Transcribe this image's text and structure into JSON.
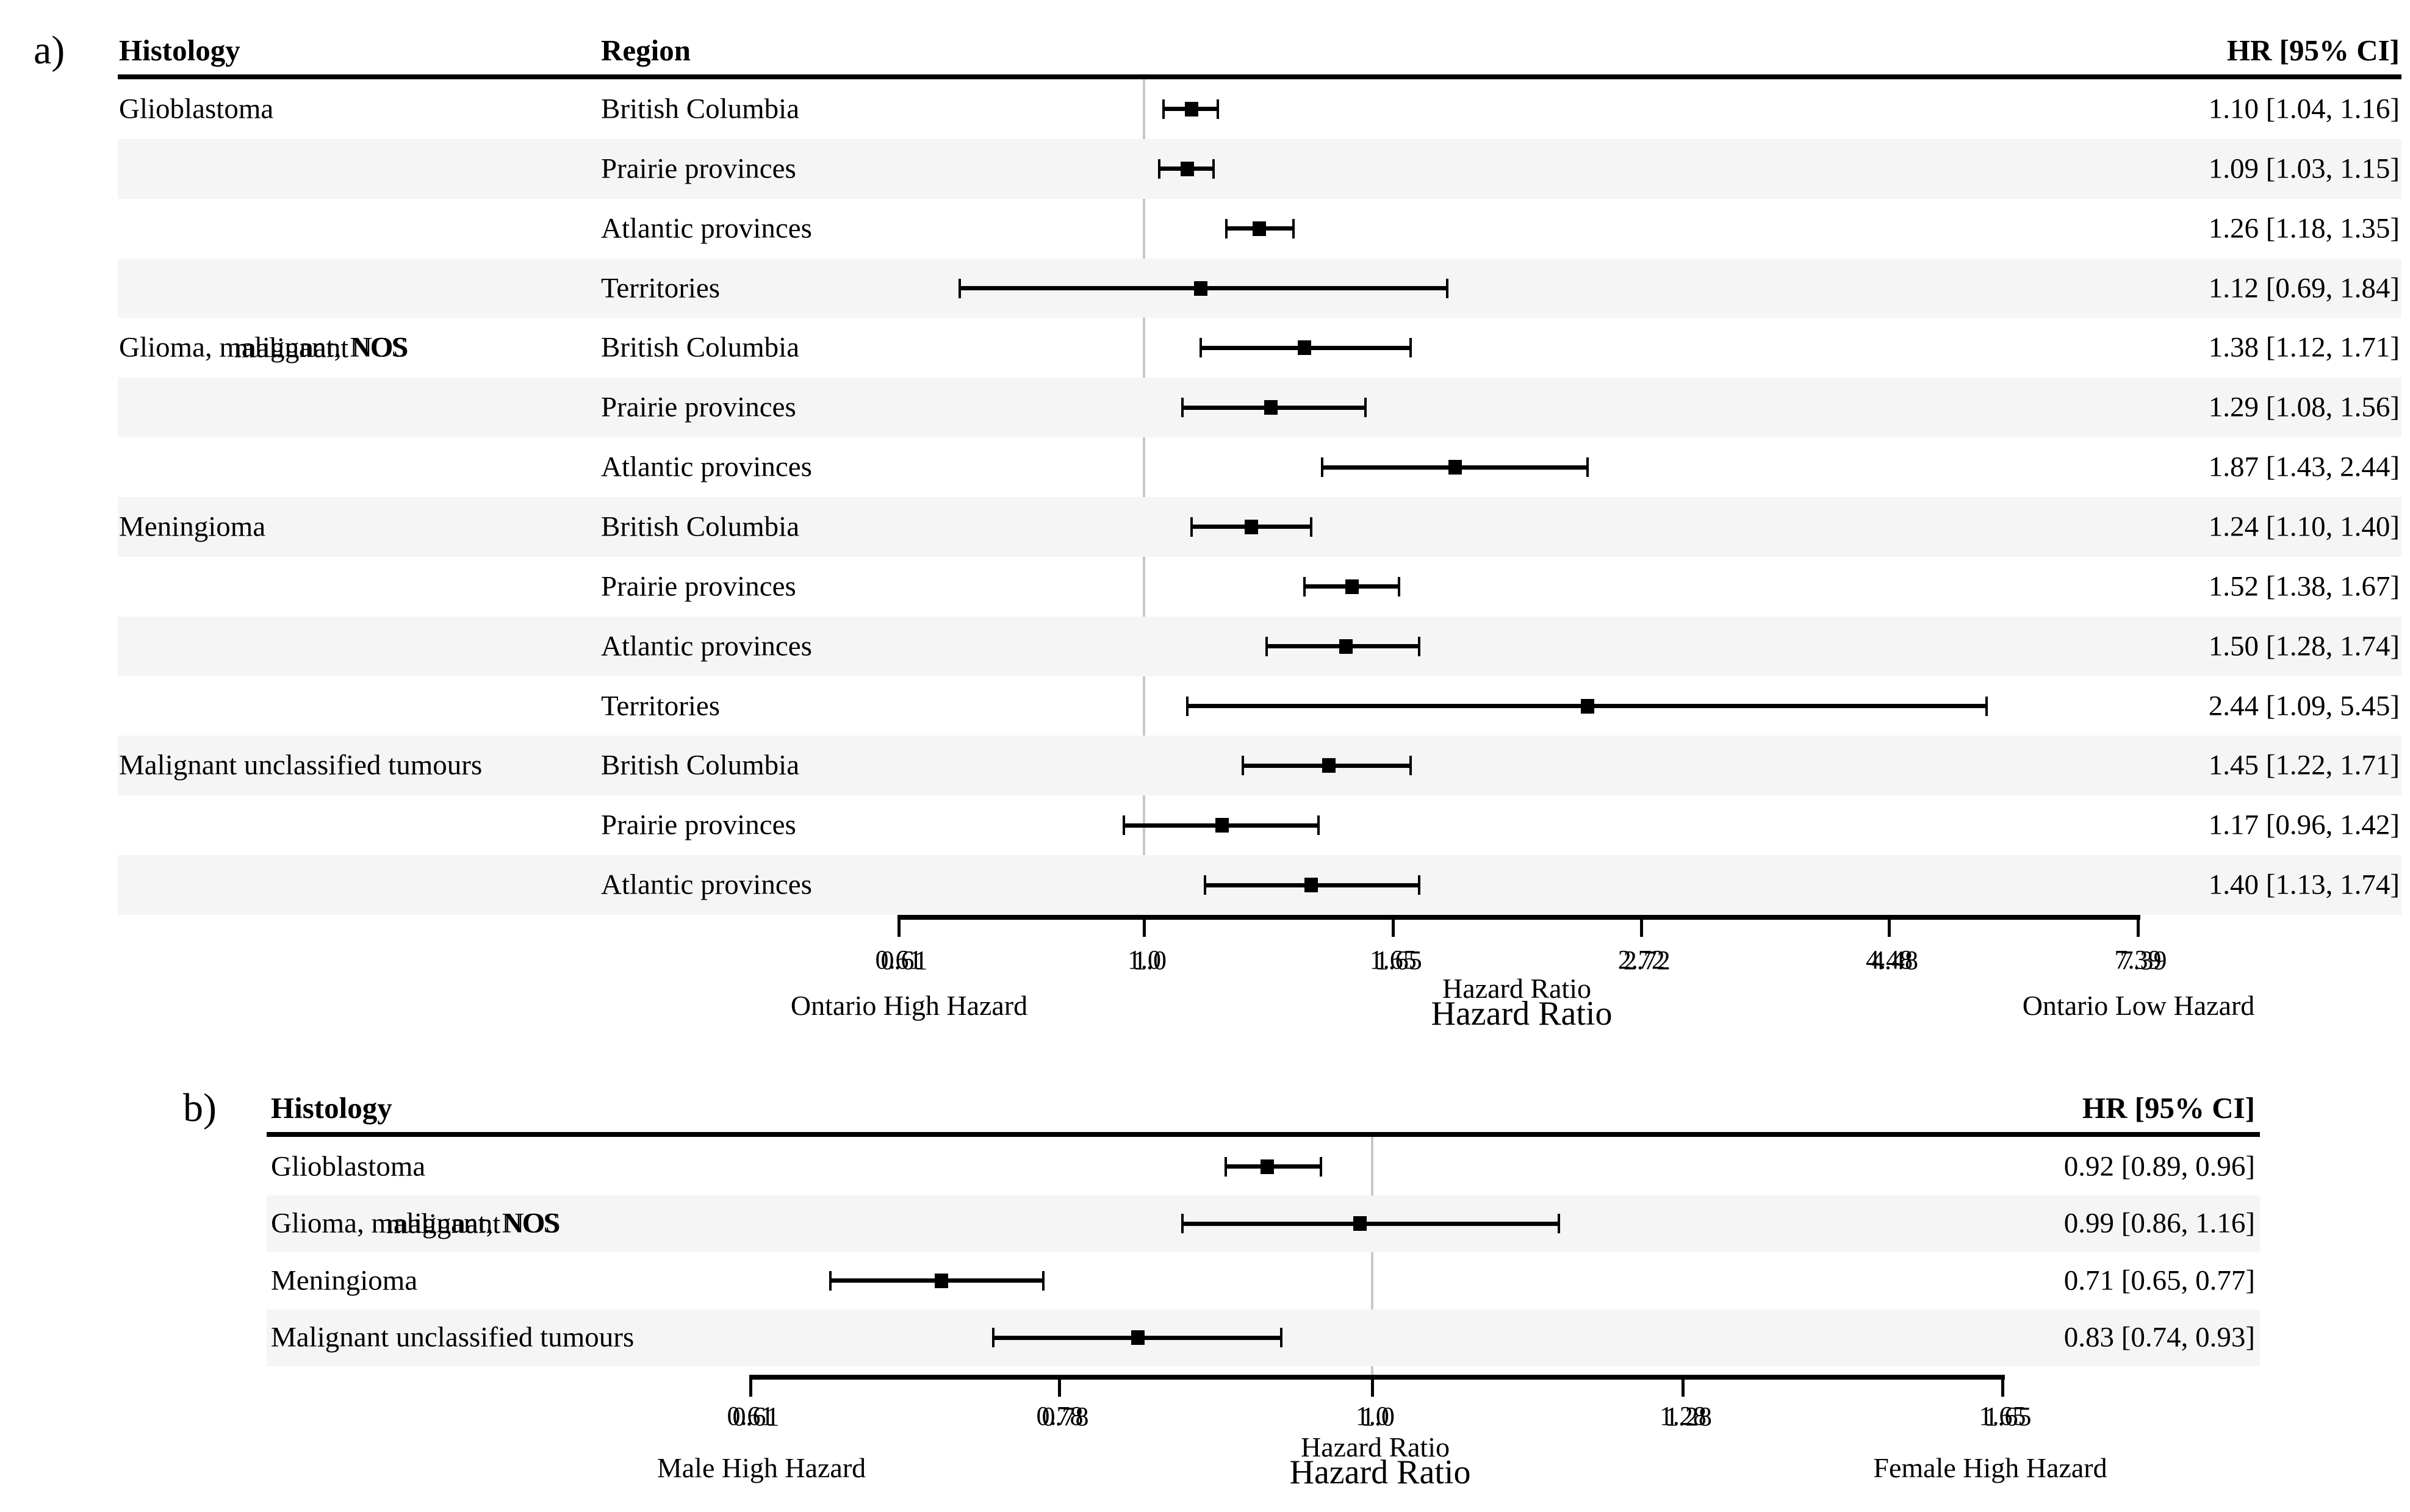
{
  "figure": {
    "background_color": "#ffffff",
    "text_color": "#000000",
    "stripe_color": "#f5f5f5",
    "reference_line_color": "#c8c8c8"
  },
  "panel_a": {
    "panel_label": "a)",
    "headers": {
      "histology": "Histology",
      "region": "Region",
      "hr": "HR [95% CI]"
    },
    "axis": {
      "scale": "log",
      "min": 0.61,
      "max": 7.39,
      "reference": 1.0,
      "ticks": [
        {
          "v": 0.61,
          "label": "0.61"
        },
        {
          "v": 1.0,
          "label": "1.0"
        },
        {
          "v": 1.65,
          "label": "1.65"
        },
        {
          "v": 2.72,
          "label": "2.72"
        },
        {
          "v": 4.48,
          "label": "4.48"
        },
        {
          "v": 7.39,
          "label": "7.39"
        }
      ],
      "title_line_1": "Hazard Ratio",
      "title_line_2": "Hazard Ratio",
      "left_direction_label": "Ontario High Hazard",
      "right_direction_label": "Ontario Low Hazard"
    },
    "rows": [
      {
        "histology": "Glioblastoma",
        "region": "British Columbia",
        "hr": 1.1,
        "ci_low": 1.04,
        "ci_high": 1.16,
        "hr_text": "1.10 [1.04, 1.16]"
      },
      {
        "histology": "",
        "region": "Prairie provinces",
        "hr": 1.09,
        "ci_low": 1.03,
        "ci_high": 1.15,
        "hr_text": "1.09 [1.03, 1.15]"
      },
      {
        "histology": "",
        "region": "Atlantic provinces",
        "hr": 1.26,
        "ci_low": 1.18,
        "ci_high": 1.35,
        "hr_text": "1.26 [1.18, 1.35]"
      },
      {
        "histology": "",
        "region": "Territories",
        "hr": 1.12,
        "ci_low": 0.69,
        "ci_high": 1.84,
        "hr_text": "1.12 [0.69, 1.84]"
      },
      {
        "histology": "Glioma, malignant, NOS",
        "histology_overprint": {
          "pre": "Glioma, ",
          "mid": "malignant,",
          "mid_ghost": "malignant",
          "end": "NOS",
          "end_ghost": "NOS"
        },
        "region": "British Columbia",
        "hr": 1.38,
        "ci_low": 1.12,
        "ci_high": 1.71,
        "hr_text": "1.38 [1.12, 1.71]"
      },
      {
        "histology": "",
        "region": "Prairie provinces",
        "hr": 1.29,
        "ci_low": 1.08,
        "ci_high": 1.56,
        "hr_text": "1.29 [1.08, 1.56]"
      },
      {
        "histology": "",
        "region": "Atlantic provinces",
        "hr": 1.87,
        "ci_low": 1.43,
        "ci_high": 2.44,
        "hr_text": "1.87 [1.43, 2.44]"
      },
      {
        "histology": "Meningioma",
        "region": "British Columbia",
        "hr": 1.24,
        "ci_low": 1.1,
        "ci_high": 1.4,
        "hr_text": "1.24 [1.10, 1.40]"
      },
      {
        "histology": "",
        "region": "Prairie provinces",
        "hr": 1.52,
        "ci_low": 1.38,
        "ci_high": 1.67,
        "hr_text": "1.52 [1.38, 1.67]"
      },
      {
        "histology": "",
        "region": "Atlantic provinces",
        "hr": 1.5,
        "ci_low": 1.28,
        "ci_high": 1.74,
        "hr_text": "1.50 [1.28, 1.74]"
      },
      {
        "histology": "",
        "region": "Territories",
        "hr": 2.44,
        "ci_low": 1.09,
        "ci_high": 5.45,
        "hr_text": "2.44 [1.09, 5.45]"
      },
      {
        "histology": "Malignant unclassified tumours",
        "region": "British Columbia",
        "hr": 1.45,
        "ci_low": 1.22,
        "ci_high": 1.71,
        "hr_text": "1.45 [1.22, 1.71]"
      },
      {
        "histology": "",
        "region": "Prairie provinces",
        "hr": 1.17,
        "ci_low": 0.96,
        "ci_high": 1.42,
        "hr_text": "1.17 [0.96, 1.42]"
      },
      {
        "histology": "",
        "region": "Atlantic provinces",
        "hr": 1.4,
        "ci_low": 1.13,
        "ci_high": 1.74,
        "hr_text": "1.40 [1.13, 1.74]"
      }
    ]
  },
  "panel_b": {
    "panel_label": "b)",
    "headers": {
      "histology": "Histology",
      "hr": "HR [95% CI]"
    },
    "axis": {
      "scale": "log",
      "min": 0.61,
      "max": 1.65,
      "reference": 1.0,
      "ticks": [
        {
          "v": 0.61,
          "label": "0.61"
        },
        {
          "v": 0.78,
          "label": "0.78"
        },
        {
          "v": 1.0,
          "label": "1.0"
        },
        {
          "v": 1.28,
          "label": "1.28"
        },
        {
          "v": 1.65,
          "label": "1.65"
        }
      ],
      "title_line_1": "Hazard Ratio",
      "title_line_2": "Hazard Ratio",
      "left_direction_label": "Male High Hazard",
      "right_direction_label": "Female High Hazard"
    },
    "rows": [
      {
        "histology": "Glioblastoma",
        "hr": 0.92,
        "ci_low": 0.89,
        "ci_high": 0.96,
        "hr_text": "0.92 [0.89, 0.96]"
      },
      {
        "histology": "Glioma, malignant, NOS",
        "histology_overprint": {
          "pre": "Glioma, ",
          "mid": "malignant,",
          "mid_ghost": "malignant",
          "end": "NOS",
          "end_ghost": "NOS"
        },
        "hr": 0.99,
        "ci_low": 0.86,
        "ci_high": 1.16,
        "hr_text": "0.99 [0.86, 1.16]"
      },
      {
        "histology": "Meningioma",
        "hr": 0.71,
        "ci_low": 0.65,
        "ci_high": 0.77,
        "hr_text": "0.71 [0.65, 0.77]"
      },
      {
        "histology": "Malignant unclassified tumours",
        "hr": 0.83,
        "ci_low": 0.74,
        "ci_high": 0.93,
        "hr_text": "0.83 [0.74, 0.93]"
      }
    ]
  },
  "chart_data": [
    {
      "type": "scatter",
      "subtype": "forest-plot",
      "panel": "a",
      "title": "Hazard Ratio",
      "xlabel": "Hazard Ratio",
      "x_scale": "log",
      "x_range": [
        0.61,
        7.39
      ],
      "x_ticks": [
        0.61,
        1.0,
        1.65,
        2.72,
        4.48,
        7.39
      ],
      "reference_line": 1.0,
      "grid": false,
      "direction_labels": {
        "left": "Ontario High Hazard",
        "right": "Ontario Low Hazard"
      },
      "points": [
        {
          "histology": "Glioblastoma",
          "region": "British Columbia",
          "hr": 1.1,
          "ci": [
            1.04,
            1.16
          ]
        },
        {
          "histology": "Glioblastoma",
          "region": "Prairie provinces",
          "hr": 1.09,
          "ci": [
            1.03,
            1.15
          ]
        },
        {
          "histology": "Glioblastoma",
          "region": "Atlantic provinces",
          "hr": 1.26,
          "ci": [
            1.18,
            1.35
          ]
        },
        {
          "histology": "Glioblastoma",
          "region": "Territories",
          "hr": 1.12,
          "ci": [
            0.69,
            1.84
          ]
        },
        {
          "histology": "Glioma, malignant, NOS",
          "region": "British Columbia",
          "hr": 1.38,
          "ci": [
            1.12,
            1.71
          ]
        },
        {
          "histology": "Glioma, malignant, NOS",
          "region": "Prairie provinces",
          "hr": 1.29,
          "ci": [
            1.08,
            1.56
          ]
        },
        {
          "histology": "Glioma, malignant, NOS",
          "region": "Atlantic provinces",
          "hr": 1.87,
          "ci": [
            1.43,
            2.44
          ]
        },
        {
          "histology": "Meningioma",
          "region": "British Columbia",
          "hr": 1.24,
          "ci": [
            1.1,
            1.4
          ]
        },
        {
          "histology": "Meningioma",
          "region": "Prairie provinces",
          "hr": 1.52,
          "ci": [
            1.38,
            1.67
          ]
        },
        {
          "histology": "Meningioma",
          "region": "Atlantic provinces",
          "hr": 1.5,
          "ci": [
            1.28,
            1.74
          ]
        },
        {
          "histology": "Meningioma",
          "region": "Territories",
          "hr": 2.44,
          "ci": [
            1.09,
            5.45
          ]
        },
        {
          "histology": "Malignant unclassified tumours",
          "region": "British Columbia",
          "hr": 1.45,
          "ci": [
            1.22,
            1.71
          ]
        },
        {
          "histology": "Malignant unclassified tumours",
          "region": "Prairie provinces",
          "hr": 1.17,
          "ci": [
            0.96,
            1.42
          ]
        },
        {
          "histology": "Malignant unclassified tumours",
          "region": "Atlantic provinces",
          "hr": 1.4,
          "ci": [
            1.13,
            1.74
          ]
        }
      ]
    },
    {
      "type": "scatter",
      "subtype": "forest-plot",
      "panel": "b",
      "title": "Hazard Ratio",
      "xlabel": "Hazard Ratio",
      "x_scale": "log",
      "x_range": [
        0.61,
        1.65
      ],
      "x_ticks": [
        0.61,
        0.78,
        1.0,
        1.28,
        1.65
      ],
      "reference_line": 1.0,
      "grid": false,
      "direction_labels": {
        "left": "Male High Hazard",
        "right": "Female High Hazard"
      },
      "points": [
        {
          "histology": "Glioblastoma",
          "hr": 0.92,
          "ci": [
            0.89,
            0.96
          ]
        },
        {
          "histology": "Glioma, malignant, NOS",
          "hr": 0.99,
          "ci": [
            0.86,
            1.16
          ]
        },
        {
          "histology": "Meningioma",
          "hr": 0.71,
          "ci": [
            0.65,
            0.77
          ]
        },
        {
          "histology": "Malignant unclassified tumours",
          "hr": 0.83,
          "ci": [
            0.74,
            0.93
          ]
        }
      ]
    }
  ]
}
